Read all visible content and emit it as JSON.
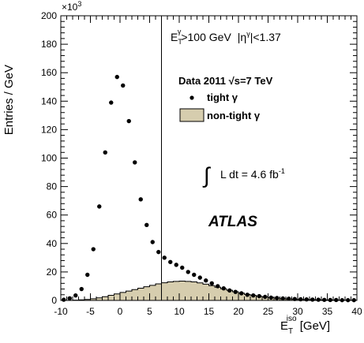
{
  "chart_data": {
    "type": "scatter",
    "xlabel_main": "E",
    "xlabel_sup": "iso",
    "xlabel_sub": "T",
    "xlabel_unit": " [GeV]",
    "ylabel": "Entries / GeV",
    "y_exponent_base": "×10",
    "y_exponent": "3",
    "xlim": [
      -10,
      40
    ],
    "ylim": [
      0,
      200
    ],
    "x_ticks": [
      -10,
      -5,
      0,
      5,
      10,
      15,
      20,
      25,
      30,
      35,
      40
    ],
    "y_ticks": [
      0,
      20,
      40,
      60,
      80,
      100,
      120,
      140,
      160,
      180,
      200
    ],
    "cut_line_x": 7,
    "selection": {
      "et": "E",
      "et_sup": "γ",
      "et_sub": "T",
      "et_cond": ">100 GeV",
      "eta": "|η",
      "eta_sup": "γ",
      "eta_cond": "|<1.37"
    },
    "legend": {
      "header": "Data 2011 √s=7 TeV",
      "tight_label": "tight γ",
      "nontight_label": "non-tight γ",
      "nontight_color": "#d6cdae"
    },
    "lumi": {
      "integral": "∫",
      "text": "L dt =  4.6 fb",
      "sup": "-1"
    },
    "atlas_label": "ATLAS",
    "series": [
      {
        "name": "tight γ",
        "x": [
          -9.5,
          -8.5,
          -7.5,
          -6.5,
          -5.5,
          -4.5,
          -3.5,
          -2.5,
          -1.5,
          -0.5,
          0.5,
          1.5,
          2.5,
          3.5,
          4.5,
          5.5,
          6.5,
          7.5,
          8.5,
          9.5,
          10.5,
          11.5,
          12.5,
          13.5,
          14.5,
          15.5,
          16.5,
          17.5,
          18.5,
          19.5,
          20.5,
          21.5,
          22.5,
          23.5,
          24.5,
          25.5,
          26.5,
          27.5,
          28.5,
          29.5,
          30.5,
          31.5,
          32.5,
          33.5,
          34.5,
          35.5,
          36.5,
          37.5,
          38.5,
          39.5
        ],
        "y": [
          0.5,
          1.5,
          3.5,
          8,
          18,
          36,
          66,
          104,
          139,
          157,
          151,
          126,
          97,
          71,
          53,
          41,
          34,
          30,
          27,
          25,
          23,
          20,
          18,
          16,
          14,
          12,
          10,
          8.5,
          7,
          6,
          5,
          4,
          3.5,
          3,
          2.5,
          2,
          1.7,
          1.4,
          1.2,
          1,
          0.8,
          0.7,
          0.6,
          0.5,
          0.4,
          0.3,
          0.3,
          0.2,
          0.2,
          0.2
        ]
      },
      {
        "name": "non-tight γ",
        "x": [
          -9.5,
          -8.5,
          -7.5,
          -6.5,
          -5.5,
          -4.5,
          -3.5,
          -2.5,
          -1.5,
          -0.5,
          0.5,
          1.5,
          2.5,
          3.5,
          4.5,
          5.5,
          6.5,
          7.5,
          8.5,
          9.5,
          10.5,
          11.5,
          12.5,
          13.5,
          14.5,
          15.5,
          16.5,
          17.5,
          18.5,
          19.5,
          20.5,
          21.5,
          22.5,
          23.5,
          24.5,
          25.5,
          26.5,
          27.5,
          28.5,
          29.5,
          30.5,
          31.5,
          32.5,
          33.5,
          34.5,
          35.5,
          36.5,
          37.5,
          38.5,
          39.5
        ],
        "y": [
          0,
          0,
          0.2,
          0.4,
          0.7,
          1.2,
          1.8,
          2.6,
          3.6,
          4.6,
          5.6,
          6.6,
          7.6,
          8.6,
          9.6,
          10.6,
          11.6,
          12.4,
          13,
          13.4,
          13.6,
          13.4,
          13,
          12.3,
          11.4,
          10.4,
          9.3,
          8.2,
          7.1,
          6.1,
          5.1,
          4.2,
          3.5,
          2.9,
          2.4,
          2,
          1.6,
          1.3,
          1.1,
          0.9,
          0.7,
          0.6,
          0.5,
          0.4,
          0.3,
          0.25,
          0.2,
          0.15,
          0.1,
          0.1
        ]
      }
    ]
  }
}
